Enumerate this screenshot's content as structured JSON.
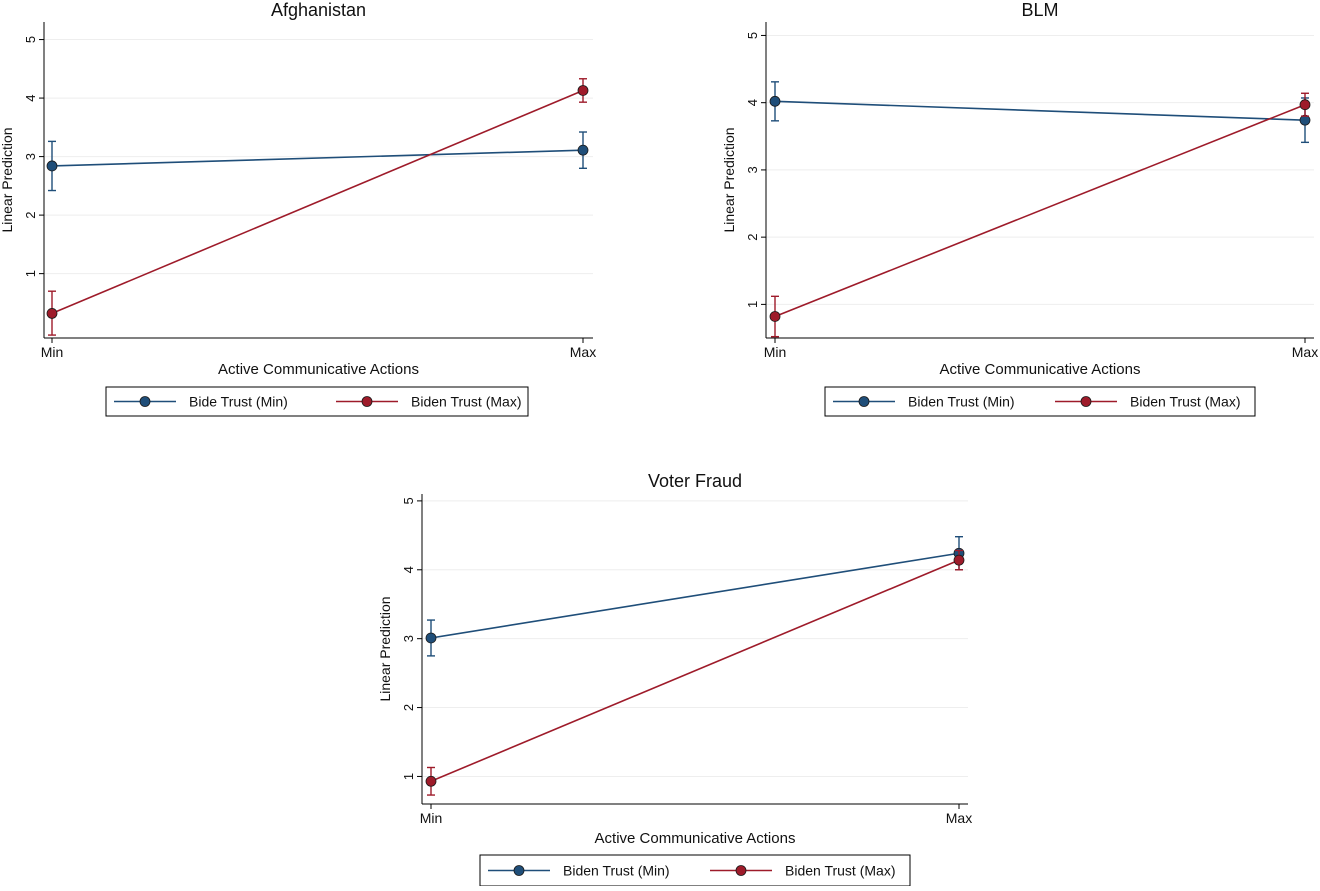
{
  "colors": {
    "min_series": "#1f4e79",
    "max_series": "#9e1b2a",
    "grid": "#eeeeee",
    "axis": "#000000"
  },
  "chart_data": [
    {
      "type": "line",
      "title": "Afghanistan",
      "xlabel": "Active Communicative Actions",
      "ylabel": "Linear Prediction",
      "categories": [
        "Min",
        "Max"
      ],
      "ylim": [
        -0.1,
        5.3
      ],
      "yticks": [
        1,
        2,
        3,
        4,
        5
      ],
      "legend_position": "bottom",
      "series": [
        {
          "name": "Bide Trust (Min)",
          "values": [
            2.84,
            3.11
          ],
          "ci_low": [
            2.42,
            2.8
          ],
          "ci_high": [
            3.26,
            3.42
          ]
        },
        {
          "name": "Biden Trust (Max)",
          "values": [
            0.32,
            4.13
          ],
          "ci_low": [
            -0.05,
            3.93
          ],
          "ci_high": [
            0.7,
            4.33
          ]
        }
      ]
    },
    {
      "type": "line",
      "title": "BLM",
      "xlabel": "Active Communicative Actions",
      "ylabel": "Linear Prediction",
      "categories": [
        "Min",
        "Max"
      ],
      "ylim": [
        0.5,
        5.2
      ],
      "yticks": [
        1,
        2,
        3,
        4,
        5
      ],
      "legend_position": "bottom",
      "series": [
        {
          "name": "Biden Trust (Min)",
          "values": [
            4.02,
            3.74
          ],
          "ci_low": [
            3.73,
            3.41
          ],
          "ci_high": [
            4.31,
            4.07
          ]
        },
        {
          "name": "Biden Trust (Max)",
          "values": [
            0.82,
            3.97
          ],
          "ci_low": [
            0.52,
            3.8
          ],
          "ci_high": [
            1.12,
            4.14
          ]
        }
      ]
    },
    {
      "type": "line",
      "title": "Voter Fraud",
      "xlabel": "Active Communicative Actions",
      "ylabel": "Linear Prediction",
      "categories": [
        "Min",
        "Max"
      ],
      "ylim": [
        0.6,
        5.1
      ],
      "yticks": [
        1,
        2,
        3,
        4,
        5
      ],
      "legend_position": "bottom",
      "series": [
        {
          "name": "Biden Trust (Min)",
          "values": [
            3.01,
            4.24
          ],
          "ci_low": [
            2.75,
            4.0
          ],
          "ci_high": [
            3.27,
            4.48
          ]
        },
        {
          "name": "Biden Trust (Max)",
          "values": [
            0.93,
            4.14
          ],
          "ci_low": [
            0.73,
            4.0
          ],
          "ci_high": [
            1.13,
            4.28
          ]
        }
      ]
    }
  ]
}
